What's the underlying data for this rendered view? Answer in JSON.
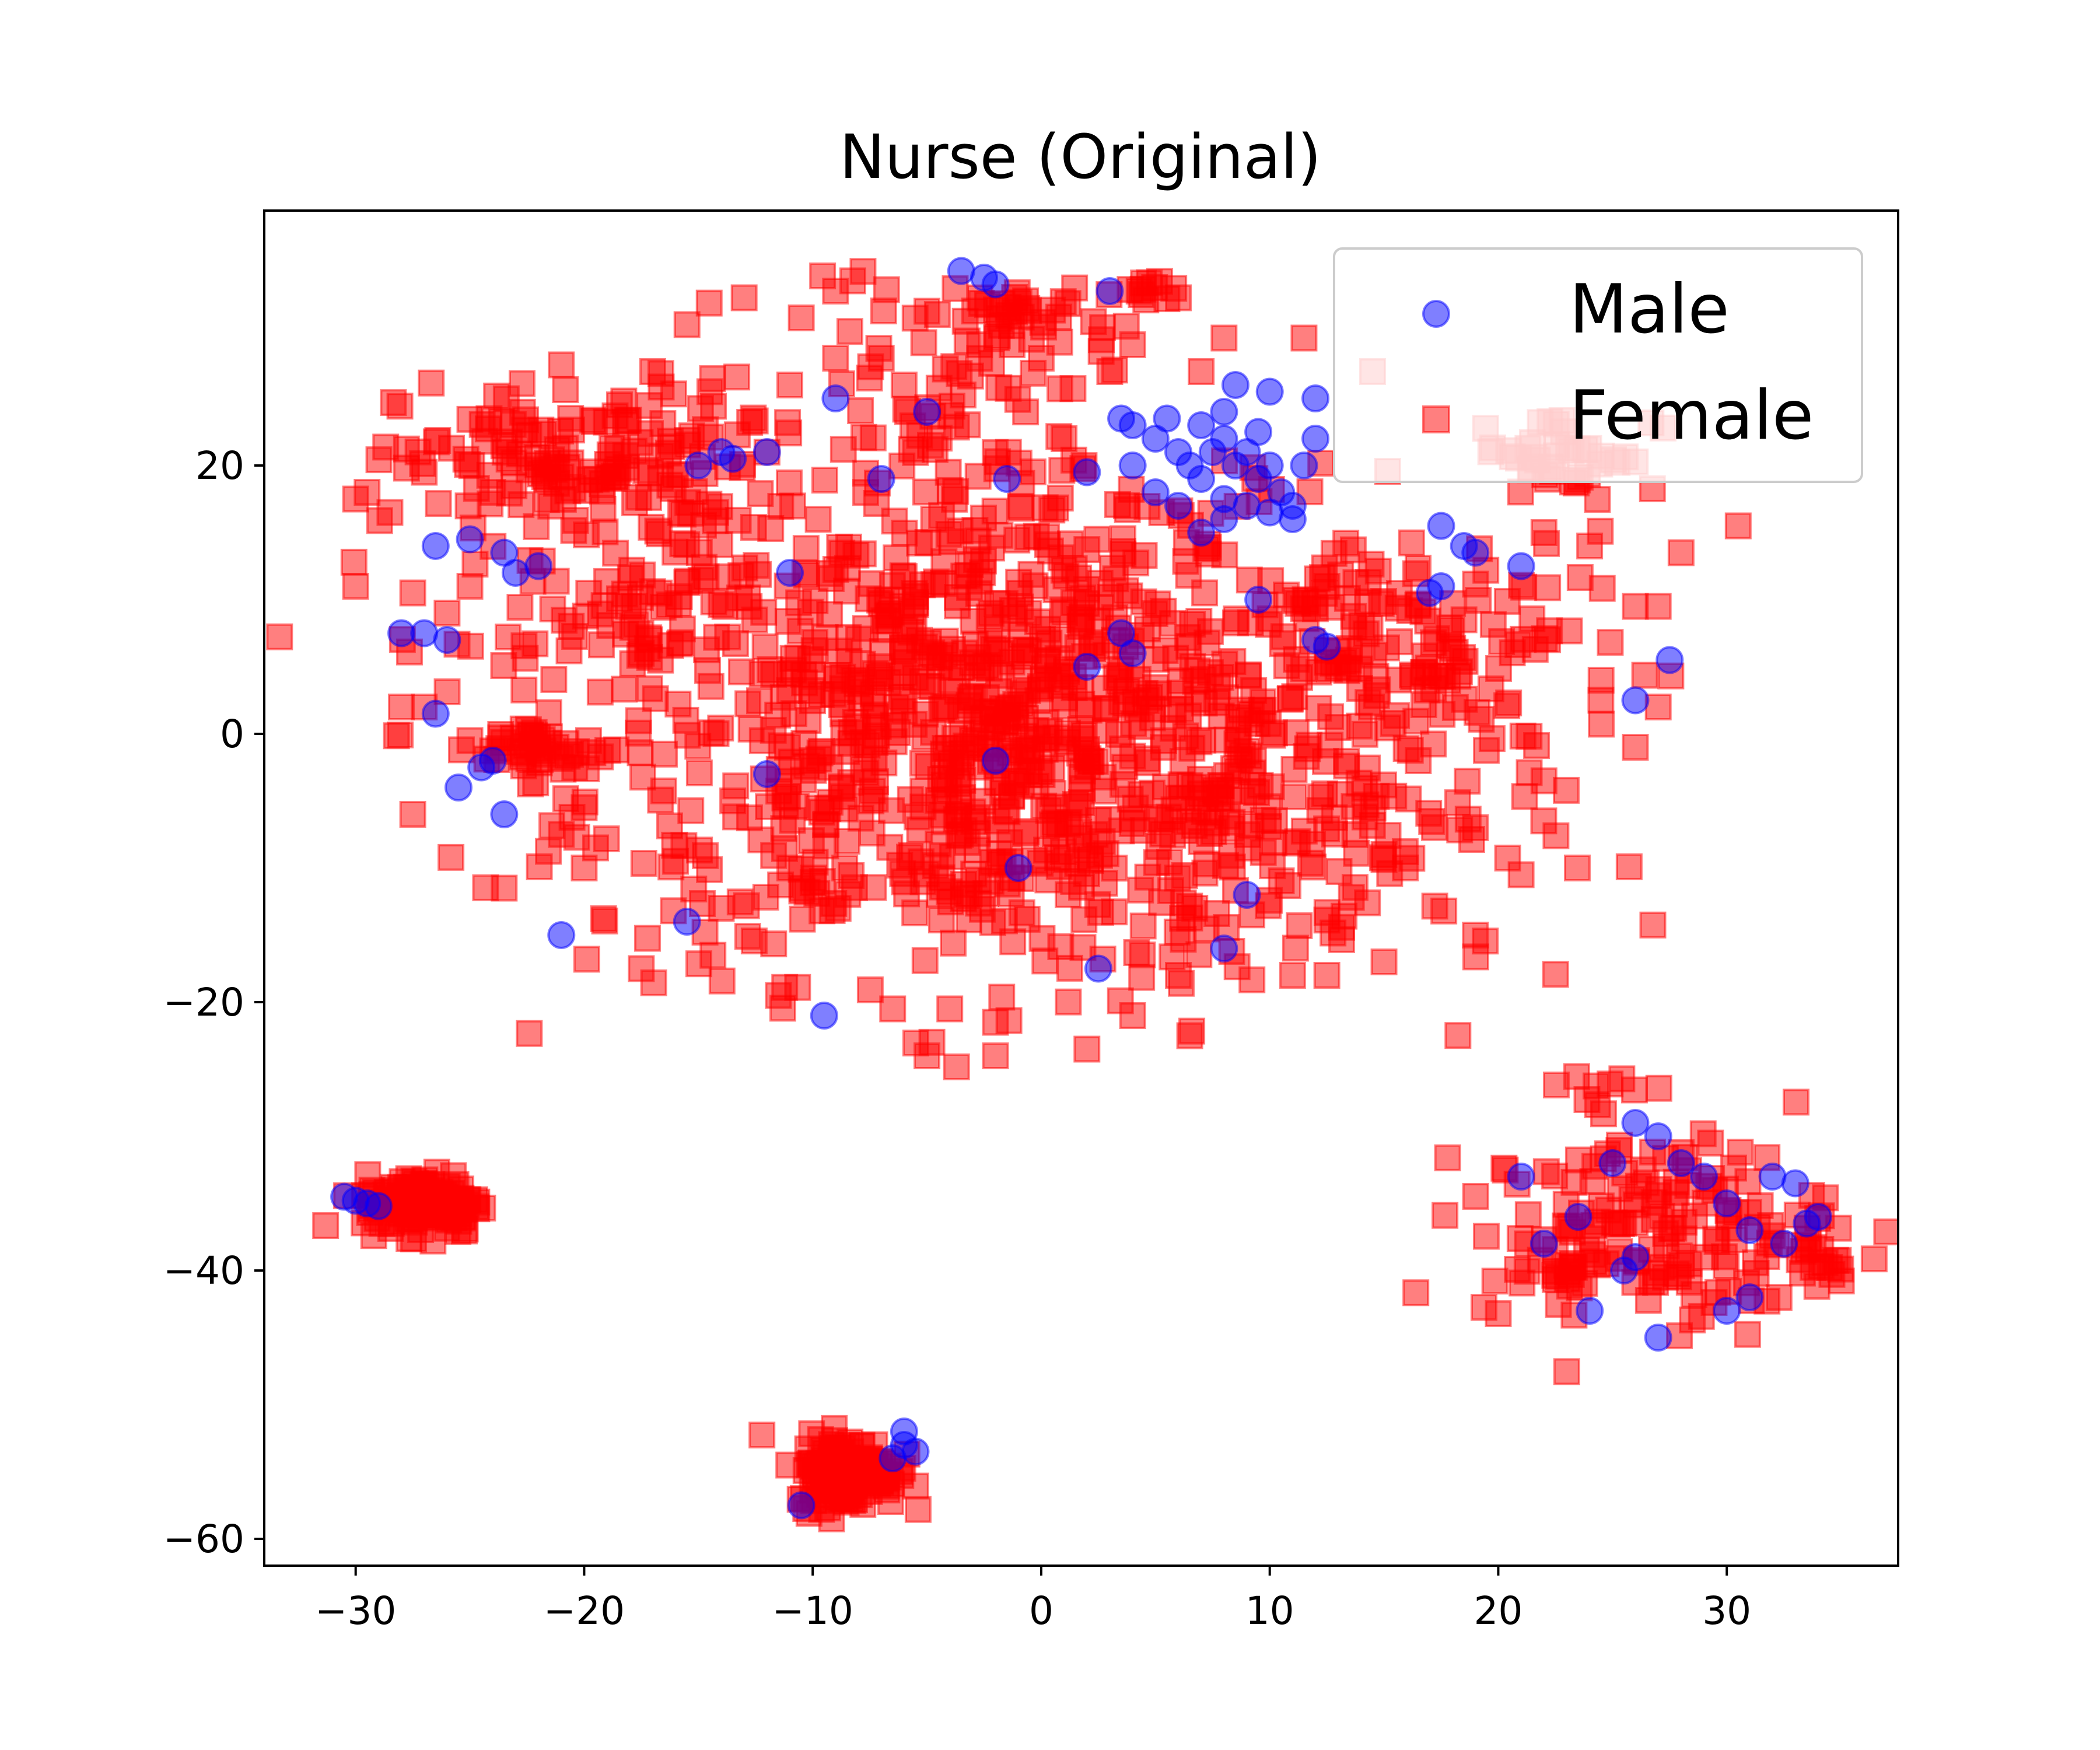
{
  "chart_data": {
    "type": "scatter",
    "title": "Nurse (Original)",
    "xlabel": "",
    "ylabel": "",
    "xlim": [
      -34,
      37.5
    ],
    "ylim": [
      -62,
      39
    ],
    "xticks": [
      -30,
      -20,
      -10,
      0,
      10,
      20,
      30
    ],
    "xtick_labels": [
      "−30",
      "−20",
      "−10",
      "0",
      "10",
      "20",
      "30"
    ],
    "yticks": [
      -60,
      -40,
      -20,
      0,
      20
    ],
    "ytick_labels": [
      "−60",
      "−40",
      "−20",
      "0",
      "20"
    ],
    "grid": false,
    "legend": {
      "position": "top-right"
    },
    "colors": {
      "male": "#0000ff",
      "female": "#ff0000"
    },
    "series": [
      {
        "name": "Male",
        "marker": "circle",
        "color": "#0000ff",
        "opacity": 0.5,
        "points": [
          [
            -3.5,
            34.5
          ],
          [
            -2.5,
            34
          ],
          [
            -2,
            33.5
          ],
          [
            3,
            33
          ],
          [
            3.5,
            23.5
          ],
          [
            4,
            23
          ],
          [
            5,
            22
          ],
          [
            6,
            21
          ],
          [
            6.5,
            20
          ],
          [
            7,
            19
          ],
          [
            7.5,
            21
          ],
          [
            8,
            22
          ],
          [
            8.5,
            20
          ],
          [
            9,
            21
          ],
          [
            9.5,
            19
          ],
          [
            10,
            20
          ],
          [
            10.5,
            18
          ],
          [
            11,
            17
          ],
          [
            8,
            24
          ],
          [
            8.5,
            26
          ],
          [
            10,
            25.5
          ],
          [
            12,
            25
          ],
          [
            7,
            15
          ],
          [
            8,
            16
          ],
          [
            9,
            17
          ],
          [
            10,
            16.5
          ],
          [
            12,
            22
          ],
          [
            11.5,
            20
          ],
          [
            5,
            18
          ],
          [
            6,
            17
          ],
          [
            4,
            20
          ],
          [
            5.5,
            23.5
          ],
          [
            8,
            17.5
          ],
          [
            9.5,
            22.5
          ],
          [
            7,
            23
          ],
          [
            11,
            16
          ],
          [
            -14,
            21
          ],
          [
            -13.5,
            20.5
          ],
          [
            -15,
            20
          ],
          [
            -12,
            21
          ],
          [
            -9,
            25
          ],
          [
            -7,
            19
          ],
          [
            -5,
            24
          ],
          [
            -1.5,
            19
          ],
          [
            2,
            19.5
          ],
          [
            -26.5,
            14
          ],
          [
            -25,
            14.5
          ],
          [
            -23.5,
            13.5
          ],
          [
            -23,
            12
          ],
          [
            -22,
            12.5
          ],
          [
            -28,
            7.5
          ],
          [
            -27,
            7.5
          ],
          [
            -26,
            7
          ],
          [
            -24,
            -2
          ],
          [
            -24.5,
            -2.5
          ],
          [
            -25.5,
            -4
          ],
          [
            -23.5,
            -6
          ],
          [
            -26.5,
            1.5
          ],
          [
            -21,
            -15
          ],
          [
            -15.5,
            -14
          ],
          [
            -9.5,
            -21
          ],
          [
            -11,
            12
          ],
          [
            -12,
            -3
          ],
          [
            18.5,
            14
          ],
          [
            17.5,
            15.5
          ],
          [
            19,
            13.5
          ],
          [
            21,
            12.5
          ],
          [
            17,
            10.5
          ],
          [
            17.5,
            11
          ],
          [
            27.5,
            5.5
          ],
          [
            26,
            2.5
          ],
          [
            4,
            6
          ],
          [
            3.5,
            7.5
          ],
          [
            2,
            5
          ],
          [
            -2,
            -2
          ],
          [
            -1,
            -10
          ],
          [
            8,
            -16
          ],
          [
            9,
            -12
          ],
          [
            2.5,
            -17.5
          ],
          [
            12,
            7
          ],
          [
            12.5,
            6.5
          ],
          [
            9.5,
            10
          ],
          [
            -30.5,
            -34.5
          ],
          [
            -30,
            -34.8
          ],
          [
            -29.5,
            -35
          ],
          [
            -29,
            -35.2
          ],
          [
            -10.5,
            -57.5
          ],
          [
            -6,
            -52
          ],
          [
            -6,
            -53
          ],
          [
            -5.5,
            -53.5
          ],
          [
            -6.5,
            -54
          ],
          [
            21,
            -33
          ],
          [
            22,
            -38
          ],
          [
            23.5,
            -36
          ],
          [
            24,
            -43
          ],
          [
            25,
            -32
          ],
          [
            26,
            -29
          ],
          [
            27,
            -30
          ],
          [
            28,
            -32
          ],
          [
            29,
            -33
          ],
          [
            30,
            -35
          ],
          [
            31,
            -37
          ],
          [
            32,
            -33
          ],
          [
            33,
            -33.5
          ],
          [
            34,
            -36
          ],
          [
            33.5,
            -36.5
          ],
          [
            32.5,
            -38
          ],
          [
            31,
            -42
          ],
          [
            27,
            -45
          ],
          [
            25.5,
            -40
          ],
          [
            30,
            -43
          ],
          [
            26,
            -39
          ]
        ]
      },
      {
        "name": "Female",
        "marker": "square",
        "color": "#ff0000",
        "opacity": 0.5,
        "points": [],
        "clusters": [
          {
            "cx": -2,
            "cy": -2,
            "sx": 9,
            "sy": 8,
            "n": 780
          },
          {
            "cx": -20,
            "cy": 20,
            "sx": 4,
            "sy": 3.2,
            "n": 160
          },
          {
            "cx": 0,
            "cy": 12,
            "sx": 8,
            "sy": 5,
            "n": 180
          },
          {
            "cx": -16,
            "cy": 8,
            "sx": 5,
            "sy": 4,
            "n": 90
          },
          {
            "cx": 17,
            "cy": 6,
            "sx": 4.5,
            "sy": 5,
            "n": 110
          },
          {
            "cx": -22,
            "cy": -1,
            "sx": 1.5,
            "sy": 1,
            "n": 40
          },
          {
            "cx": -4,
            "cy": 27,
            "sx": 3.5,
            "sy": 4,
            "n": 70
          },
          {
            "cx": 23,
            "cy": 21,
            "sx": 2,
            "sy": 1.5,
            "n": 40
          },
          {
            "cx": 4.5,
            "cy": 33.5,
            "sx": 0.6,
            "sy": 0.5,
            "n": 12
          },
          {
            "cx": -2,
            "cy": 31,
            "sx": 1.5,
            "sy": 1,
            "n": 25
          },
          {
            "cx": 10,
            "cy": -7,
            "sx": 6,
            "sy": 7,
            "n": 120
          },
          {
            "cx": -27,
            "cy": -35,
            "sx": 1.3,
            "sy": 1.1,
            "n": 150
          },
          {
            "cx": -8.5,
            "cy": -55,
            "sx": 1.1,
            "sy": 1.3,
            "n": 170
          },
          {
            "cx": 27,
            "cy": -37,
            "sx": 3.8,
            "sy": 3.5,
            "n": 160
          },
          {
            "cx": 33.5,
            "cy": -39.5,
            "sx": 0.8,
            "sy": 0.8,
            "n": 12
          },
          {
            "cx": 22.5,
            "cy": -40,
            "sx": 0.8,
            "sy": 1,
            "n": 14
          },
          {
            "cx": 25,
            "cy": -27,
            "sx": 1.5,
            "sy": 0.8,
            "n": 10
          }
        ],
        "scatter_extra": [
          [
            -29.5,
            18
          ],
          [
            -28.5,
            16.5
          ],
          [
            -30,
            11
          ],
          [
            -27,
            19.5
          ],
          [
            -24,
            18
          ],
          [
            -25,
            11
          ],
          [
            -27.5,
            10.5
          ],
          [
            -28,
            2
          ],
          [
            -27,
            2
          ],
          [
            -25,
            -0.5
          ],
          [
            -27.5,
            -6
          ],
          [
            -23.5,
            -11.5
          ],
          [
            -21,
            -7.5
          ],
          [
            -20,
            -10
          ],
          [
            -17.5,
            -17.5
          ],
          [
            -11.5,
            -19.5
          ],
          [
            -6.5,
            -20.5
          ],
          [
            -4,
            -20.5
          ],
          [
            -2,
            -21.5
          ],
          [
            -5,
            -24
          ],
          [
            -2,
            -24
          ],
          [
            2,
            -23.5
          ],
          [
            6.5,
            -22.5
          ],
          [
            4,
            -21
          ],
          [
            6,
            -18
          ],
          [
            11,
            -18
          ],
          [
            12.5,
            -18
          ],
          [
            15,
            -17
          ],
          [
            19,
            -15
          ],
          [
            21,
            -10.5
          ],
          [
            26,
            -1
          ],
          [
            24.5,
            4
          ],
          [
            26,
            9.5
          ],
          [
            27,
            9.5
          ],
          [
            28,
            13.5
          ],
          [
            30.5,
            15.5
          ],
          [
            27,
            2
          ],
          [
            24,
            14
          ],
          [
            22,
            15
          ],
          [
            14.5,
            27
          ],
          [
            11.5,
            29.5
          ],
          [
            8,
            29.5
          ],
          [
            7,
            27
          ],
          [
            6,
            32.5
          ],
          [
            4,
            29
          ],
          [
            3,
            27
          ],
          [
            -6,
            26
          ],
          [
            -7,
            28
          ],
          [
            -9,
            28
          ],
          [
            -10.5,
            31
          ],
          [
            -11,
            26
          ],
          [
            -13,
            32.5
          ],
          [
            -15.5,
            30.5
          ],
          [
            -17,
            27
          ],
          [
            -12,
            21
          ],
          [
            -14.5,
            25.5
          ],
          [
            -21,
            27.5
          ],
          [
            -9,
            33
          ],
          [
            -5,
            31.5
          ],
          [
            0,
            28
          ],
          [
            1,
            22
          ],
          [
            -16,
            -9.5
          ],
          [
            -11,
            -10
          ],
          [
            -8.5,
            -8
          ],
          [
            -13.5,
            -5
          ],
          [
            -20,
            -5.5
          ],
          [
            -26,
            9
          ],
          [
            -30,
            17.5
          ],
          [
            -19.5,
            -8.5
          ],
          [
            -14,
            -13
          ],
          [
            19,
            -7
          ],
          [
            15,
            -9
          ],
          [
            22,
            -3.5
          ],
          [
            16.5,
            -2
          ],
          [
            18.5,
            8.5
          ]
        ]
      }
    ]
  }
}
